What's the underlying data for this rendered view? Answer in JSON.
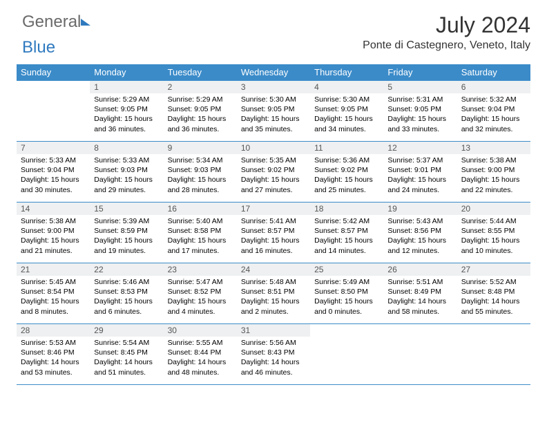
{
  "brand": {
    "part1": "General",
    "part2": "Blue"
  },
  "title": "July 2024",
  "location": "Ponte di Castegnero, Veneto, Italy",
  "colors": {
    "header_bg": "#3b8bc9",
    "header_text": "#ffffff",
    "daynum_bg": "#eef0f1",
    "border": "#3b8bc9",
    "logo_gray": "#6a6a6a",
    "logo_blue": "#2f7abf"
  },
  "weekdays": [
    "Sunday",
    "Monday",
    "Tuesday",
    "Wednesday",
    "Thursday",
    "Friday",
    "Saturday"
  ],
  "weeks": [
    [
      {
        "day": "",
        "sunrise": "",
        "sunset": "",
        "daylight": ""
      },
      {
        "day": "1",
        "sunrise": "Sunrise: 5:29 AM",
        "sunset": "Sunset: 9:05 PM",
        "daylight": "Daylight: 15 hours and 36 minutes."
      },
      {
        "day": "2",
        "sunrise": "Sunrise: 5:29 AM",
        "sunset": "Sunset: 9:05 PM",
        "daylight": "Daylight: 15 hours and 36 minutes."
      },
      {
        "day": "3",
        "sunrise": "Sunrise: 5:30 AM",
        "sunset": "Sunset: 9:05 PM",
        "daylight": "Daylight: 15 hours and 35 minutes."
      },
      {
        "day": "4",
        "sunrise": "Sunrise: 5:30 AM",
        "sunset": "Sunset: 9:05 PM",
        "daylight": "Daylight: 15 hours and 34 minutes."
      },
      {
        "day": "5",
        "sunrise": "Sunrise: 5:31 AM",
        "sunset": "Sunset: 9:05 PM",
        "daylight": "Daylight: 15 hours and 33 minutes."
      },
      {
        "day": "6",
        "sunrise": "Sunrise: 5:32 AM",
        "sunset": "Sunset: 9:04 PM",
        "daylight": "Daylight: 15 hours and 32 minutes."
      }
    ],
    [
      {
        "day": "7",
        "sunrise": "Sunrise: 5:33 AM",
        "sunset": "Sunset: 9:04 PM",
        "daylight": "Daylight: 15 hours and 30 minutes."
      },
      {
        "day": "8",
        "sunrise": "Sunrise: 5:33 AM",
        "sunset": "Sunset: 9:03 PM",
        "daylight": "Daylight: 15 hours and 29 minutes."
      },
      {
        "day": "9",
        "sunrise": "Sunrise: 5:34 AM",
        "sunset": "Sunset: 9:03 PM",
        "daylight": "Daylight: 15 hours and 28 minutes."
      },
      {
        "day": "10",
        "sunrise": "Sunrise: 5:35 AM",
        "sunset": "Sunset: 9:02 PM",
        "daylight": "Daylight: 15 hours and 27 minutes."
      },
      {
        "day": "11",
        "sunrise": "Sunrise: 5:36 AM",
        "sunset": "Sunset: 9:02 PM",
        "daylight": "Daylight: 15 hours and 25 minutes."
      },
      {
        "day": "12",
        "sunrise": "Sunrise: 5:37 AM",
        "sunset": "Sunset: 9:01 PM",
        "daylight": "Daylight: 15 hours and 24 minutes."
      },
      {
        "day": "13",
        "sunrise": "Sunrise: 5:38 AM",
        "sunset": "Sunset: 9:00 PM",
        "daylight": "Daylight: 15 hours and 22 minutes."
      }
    ],
    [
      {
        "day": "14",
        "sunrise": "Sunrise: 5:38 AM",
        "sunset": "Sunset: 9:00 PM",
        "daylight": "Daylight: 15 hours and 21 minutes."
      },
      {
        "day": "15",
        "sunrise": "Sunrise: 5:39 AM",
        "sunset": "Sunset: 8:59 PM",
        "daylight": "Daylight: 15 hours and 19 minutes."
      },
      {
        "day": "16",
        "sunrise": "Sunrise: 5:40 AM",
        "sunset": "Sunset: 8:58 PM",
        "daylight": "Daylight: 15 hours and 17 minutes."
      },
      {
        "day": "17",
        "sunrise": "Sunrise: 5:41 AM",
        "sunset": "Sunset: 8:57 PM",
        "daylight": "Daylight: 15 hours and 16 minutes."
      },
      {
        "day": "18",
        "sunrise": "Sunrise: 5:42 AM",
        "sunset": "Sunset: 8:57 PM",
        "daylight": "Daylight: 15 hours and 14 minutes."
      },
      {
        "day": "19",
        "sunrise": "Sunrise: 5:43 AM",
        "sunset": "Sunset: 8:56 PM",
        "daylight": "Daylight: 15 hours and 12 minutes."
      },
      {
        "day": "20",
        "sunrise": "Sunrise: 5:44 AM",
        "sunset": "Sunset: 8:55 PM",
        "daylight": "Daylight: 15 hours and 10 minutes."
      }
    ],
    [
      {
        "day": "21",
        "sunrise": "Sunrise: 5:45 AM",
        "sunset": "Sunset: 8:54 PM",
        "daylight": "Daylight: 15 hours and 8 minutes."
      },
      {
        "day": "22",
        "sunrise": "Sunrise: 5:46 AM",
        "sunset": "Sunset: 8:53 PM",
        "daylight": "Daylight: 15 hours and 6 minutes."
      },
      {
        "day": "23",
        "sunrise": "Sunrise: 5:47 AM",
        "sunset": "Sunset: 8:52 PM",
        "daylight": "Daylight: 15 hours and 4 minutes."
      },
      {
        "day": "24",
        "sunrise": "Sunrise: 5:48 AM",
        "sunset": "Sunset: 8:51 PM",
        "daylight": "Daylight: 15 hours and 2 minutes."
      },
      {
        "day": "25",
        "sunrise": "Sunrise: 5:49 AM",
        "sunset": "Sunset: 8:50 PM",
        "daylight": "Daylight: 15 hours and 0 minutes."
      },
      {
        "day": "26",
        "sunrise": "Sunrise: 5:51 AM",
        "sunset": "Sunset: 8:49 PM",
        "daylight": "Daylight: 14 hours and 58 minutes."
      },
      {
        "day": "27",
        "sunrise": "Sunrise: 5:52 AM",
        "sunset": "Sunset: 8:48 PM",
        "daylight": "Daylight: 14 hours and 55 minutes."
      }
    ],
    [
      {
        "day": "28",
        "sunrise": "Sunrise: 5:53 AM",
        "sunset": "Sunset: 8:46 PM",
        "daylight": "Daylight: 14 hours and 53 minutes."
      },
      {
        "day": "29",
        "sunrise": "Sunrise: 5:54 AM",
        "sunset": "Sunset: 8:45 PM",
        "daylight": "Daylight: 14 hours and 51 minutes."
      },
      {
        "day": "30",
        "sunrise": "Sunrise: 5:55 AM",
        "sunset": "Sunset: 8:44 PM",
        "daylight": "Daylight: 14 hours and 48 minutes."
      },
      {
        "day": "31",
        "sunrise": "Sunrise: 5:56 AM",
        "sunset": "Sunset: 8:43 PM",
        "daylight": "Daylight: 14 hours and 46 minutes."
      },
      {
        "day": "",
        "sunrise": "",
        "sunset": "",
        "daylight": ""
      },
      {
        "day": "",
        "sunrise": "",
        "sunset": "",
        "daylight": ""
      },
      {
        "day": "",
        "sunrise": "",
        "sunset": "",
        "daylight": ""
      }
    ]
  ]
}
